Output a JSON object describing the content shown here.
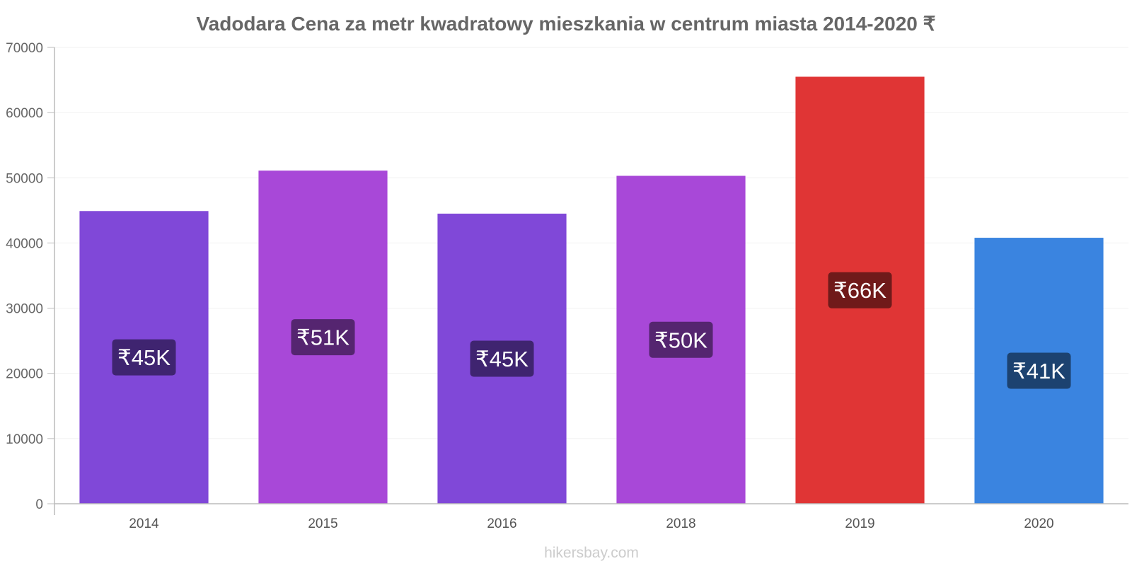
{
  "chart_data": {
    "type": "bar",
    "title": "Vadodara Cena za metr kwadratowy mieszkania w centrum miasta 2014-2020 ₹",
    "categories": [
      "2014",
      "2015",
      "2016",
      "2018",
      "2019",
      "2020"
    ],
    "values": [
      44900,
      51100,
      44500,
      50300,
      65500,
      40800
    ],
    "value_labels": [
      "₹45K",
      "₹51K",
      "₹45K",
      "₹50K",
      "₹66K",
      "₹41K"
    ],
    "bar_colors": [
      "#8048d8",
      "#a848d8",
      "#8048d8",
      "#a848d8",
      "#e03535",
      "#3a84e0"
    ],
    "label_bg_colors": [
      "#3f2470",
      "#552570",
      "#3f2470",
      "#552570",
      "#701a1a",
      "#1c4270"
    ],
    "ylim": [
      0,
      70000
    ],
    "yticks": [
      0,
      10000,
      20000,
      30000,
      40000,
      50000,
      60000,
      70000
    ],
    "ytick_labels": [
      "0",
      "10000",
      "20000",
      "30000",
      "40000",
      "50000",
      "60000",
      "70000"
    ],
    "grid": true,
    "legend": "none",
    "xlabel": "",
    "ylabel": ""
  },
  "watermark": "hikersbay.com"
}
